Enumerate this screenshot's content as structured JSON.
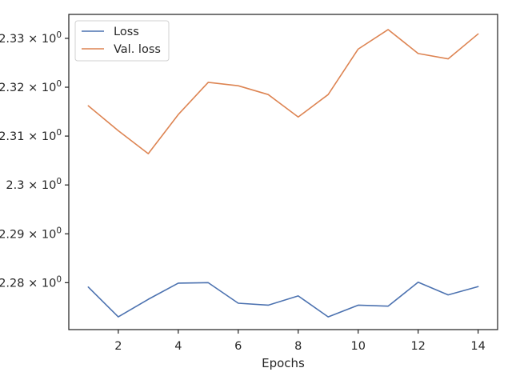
{
  "chart_data": {
    "type": "line",
    "title": "",
    "xlabel": "Epochs",
    "ylabel": "",
    "x": [
      1,
      2,
      3,
      4,
      5,
      6,
      7,
      8,
      9,
      10,
      11,
      12,
      13,
      14
    ],
    "series": [
      {
        "name": "Loss",
        "color": "#4c72b0",
        "values": [
          2.2791,
          2.273,
          2.2766,
          2.2799,
          2.28,
          2.2758,
          2.2754,
          2.2773,
          2.273,
          2.2754,
          2.2752,
          2.2801,
          2.2775,
          2.2792
        ]
      },
      {
        "name": "Val. loss",
        "color": "#dd8452",
        "values": [
          2.3162,
          2.3111,
          2.3064,
          2.3144,
          2.321,
          2.3203,
          2.3185,
          2.3139,
          2.3185,
          2.3278,
          2.3318,
          2.3269,
          2.3258,
          2.3309
        ]
      }
    ],
    "xlim": [
      0.35,
      14.65
    ],
    "ylim": [
      2.2704,
      2.3349
    ],
    "xticks": [
      2,
      4,
      6,
      8,
      10,
      12,
      14
    ],
    "yticks": [
      {
        "value": 2.28,
        "label": "2.28 × 10"
      },
      {
        "value": 2.29,
        "label": "2.29 × 10"
      },
      {
        "value": 2.3,
        "label": "2.3 × 10"
      },
      {
        "value": 2.31,
        "label": "2.31 × 10"
      },
      {
        "value": 2.32,
        "label": "2.32 × 10"
      },
      {
        "value": 2.33,
        "label": "2.33 × 10"
      }
    ],
    "ytick_exponent": "0",
    "yscale": "log",
    "grid": false,
    "legend_position": "top-left"
  }
}
